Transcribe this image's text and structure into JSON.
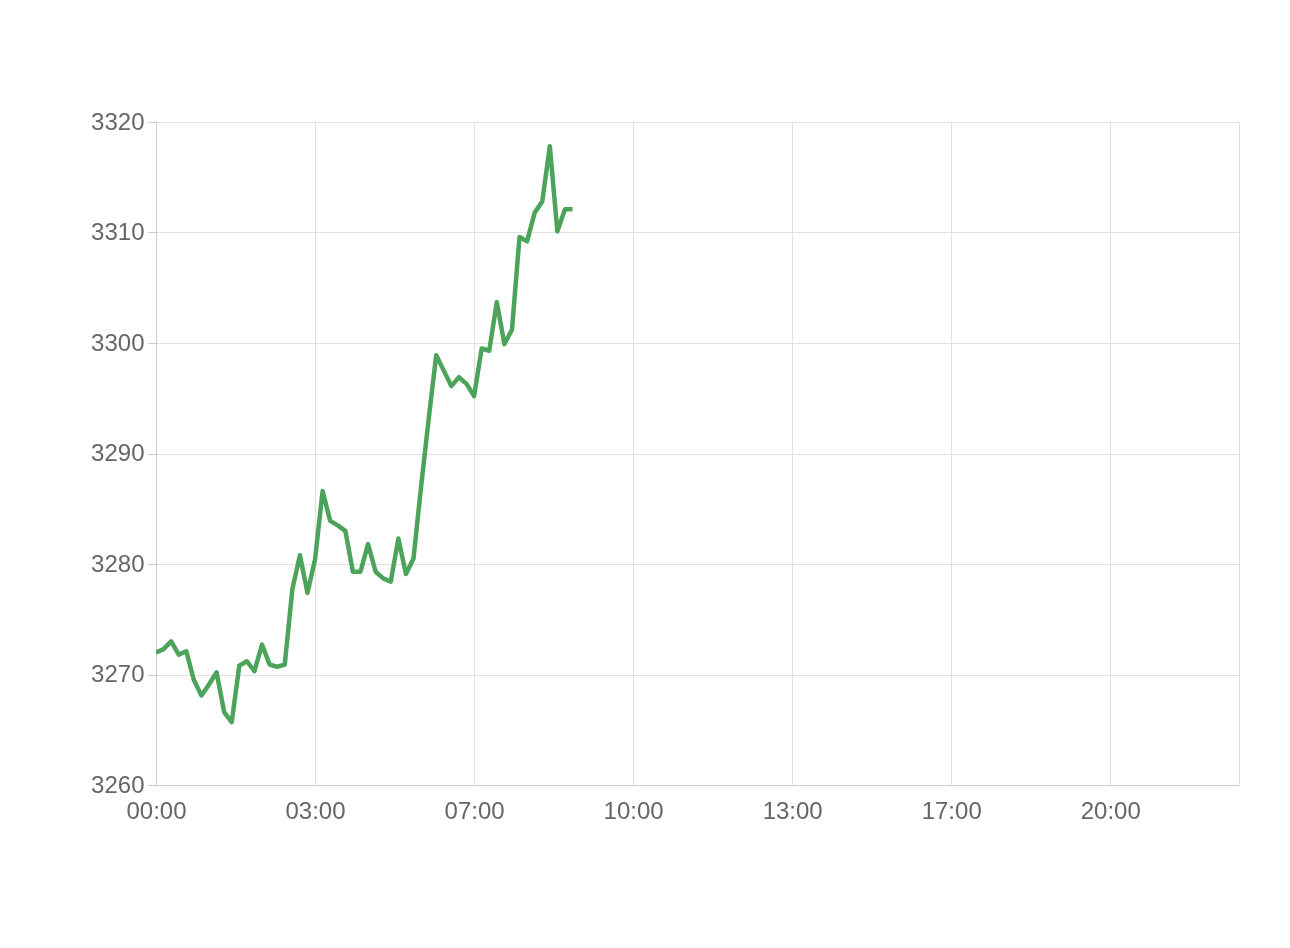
{
  "chart_data": {
    "type": "line",
    "ylim": [
      3260,
      3320
    ],
    "categories": [
      "00:00",
      null,
      null,
      null,
      null,
      null,
      null,
      null,
      null,
      null,
      null,
      null,
      null,
      null,
      null,
      null,
      null,
      null,
      null,
      null,
      null,
      "03:00",
      null,
      null,
      null,
      null,
      null,
      null,
      null,
      null,
      null,
      null,
      null,
      null,
      null,
      null,
      null,
      null,
      null,
      null,
      null,
      null,
      "07:00",
      null,
      null,
      null,
      null,
      null,
      null,
      null,
      null,
      null,
      null,
      null,
      null,
      null,
      null,
      null,
      null,
      null,
      null,
      null,
      null,
      "10:00",
      null,
      null,
      null,
      null,
      null,
      null,
      null,
      null,
      null,
      null,
      null,
      null,
      null,
      null,
      null,
      null,
      null,
      null,
      null,
      null,
      "13:00",
      null,
      null,
      null,
      null,
      null,
      null,
      null,
      null,
      null,
      null,
      null,
      null,
      null,
      null,
      null,
      null,
      null,
      null,
      null,
      null,
      "17:00",
      null,
      null,
      null,
      null,
      null,
      null,
      null,
      null,
      null,
      null,
      null,
      null,
      null,
      null,
      null,
      null,
      null,
      null,
      null,
      null,
      "20:00",
      null,
      null,
      null,
      null,
      null,
      null,
      null,
      null,
      null,
      null,
      null,
      null,
      null,
      null,
      null,
      null,
      null
    ],
    "yticks": [
      3260,
      3270,
      3280,
      3290,
      3300,
      3310,
      3320
    ],
    "grid": true,
    "line_style": "solid",
    "series": [
      {
        "color": "#4ca35a",
        "values": [
          3272.0,
          3272.3,
          3273.0,
          3271.8,
          3272.1,
          3269.5,
          3268.1,
          3269.1,
          3270.2,
          3266.6,
          3265.7,
          3270.8,
          3271.2,
          3270.3,
          3272.7,
          3270.9,
          3270.7,
          3270.9,
          3277.7,
          3280.8,
          3277.4,
          3280.4,
          3286.6,
          3283.9,
          3283.5,
          3283.0,
          3279.3,
          3279.3,
          3281.8,
          3279.3,
          3278.7,
          3278.4,
          3282.3,
          3279.1,
          3280.5,
          3287.0,
          3293.1,
          3298.9,
          3297.5,
          3296.1,
          3296.9,
          3296.3,
          3295.2,
          3299.5,
          3299.3,
          3303.7,
          3299.9,
          3301.2,
          3309.6,
          3309.2,
          3311.8,
          3312.8,
          3317.8,
          3310.1,
          3312.1,
          3312.1,
          null,
          null,
          null,
          null,
          null,
          null,
          null,
          null,
          null,
          null,
          null,
          null,
          null,
          null,
          null,
          null,
          null,
          null,
          null,
          null,
          null,
          null,
          null,
          null,
          null,
          null,
          null,
          null,
          null,
          null,
          null,
          null,
          null,
          null,
          null,
          null,
          null,
          null,
          null,
          null,
          null,
          null,
          null,
          null,
          null,
          null,
          null,
          null,
          null,
          null,
          null,
          null,
          null,
          null,
          null,
          null,
          null,
          null,
          null,
          null,
          null,
          null,
          null,
          null,
          null,
          null,
          null,
          null,
          null,
          null,
          null,
          null,
          null,
          null,
          null,
          null,
          null,
          null,
          null,
          null,
          null,
          null,
          null,
          null,
          null,
          null,
          null,
          null
        ]
      }
    ]
  }
}
